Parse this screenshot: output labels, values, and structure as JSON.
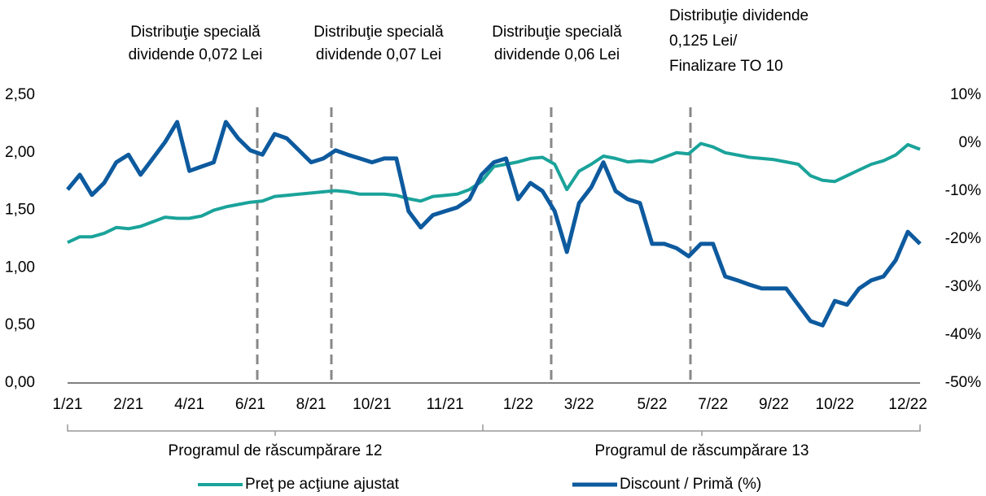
{
  "chart_data": {
    "type": "line",
    "annotations": [
      [
        "Distribuţie specială",
        "dividende 0,072 Lei"
      ],
      [
        "Distribuţie specială",
        "dividende 0,07 Lei"
      ],
      [
        "Distribuţie specială",
        "dividende 0,06 Lei"
      ],
      [
        "Distribuţie dividende",
        "0,125 Lei/",
        "Finalizare TO 10"
      ]
    ],
    "periods": [
      "Programul de răscumpărare 12",
      "Programul de răscumpărare 13"
    ],
    "categories": [
      "1/21",
      null,
      null,
      null,
      null,
      "2/21",
      null,
      null,
      null,
      null,
      "4/21",
      null,
      null,
      null,
      null,
      "6/21",
      null,
      null,
      null,
      null,
      "8/21",
      null,
      null,
      null,
      null,
      "10/21",
      null,
      null,
      null,
      null,
      null,
      "11/21",
      null,
      null,
      null,
      null,
      null,
      "1/22",
      null,
      null,
      null,
      null,
      "3/22",
      null,
      null,
      null,
      null,
      null,
      "5/22",
      null,
      null,
      null,
      null,
      "7/22",
      null,
      null,
      null,
      null,
      "9/22",
      null,
      null,
      null,
      null,
      "10/22",
      null,
      null,
      null,
      null,
      null,
      "12/22",
      null
    ],
    "series": [
      {
        "name": "Preţ pe acţiune ajustat",
        "color": "#1aa39a",
        "values": [
          1.22,
          1.27,
          1.27,
          1.3,
          1.35,
          1.34,
          1.36,
          1.4,
          1.44,
          1.43,
          1.43,
          1.45,
          1.5,
          1.53,
          1.55,
          1.57,
          1.58,
          1.62,
          1.63,
          1.64,
          1.65,
          1.66,
          1.67,
          1.66,
          1.64,
          1.64,
          1.64,
          1.63,
          1.6,
          1.58,
          1.62,
          1.63,
          1.64,
          1.68,
          1.75,
          1.88,
          1.9,
          1.92,
          1.95,
          1.96,
          1.9,
          1.68,
          1.84,
          1.9,
          1.97,
          1.95,
          1.92,
          1.93,
          1.92,
          1.96,
          2.0,
          1.99,
          2.08,
          2.05,
          2.0,
          1.98,
          1.96,
          1.95,
          1.94,
          1.92,
          1.9,
          1.8,
          1.76,
          1.75,
          1.8,
          1.85,
          1.9,
          1.93,
          1.98,
          2.07,
          2.03
        ]
      },
      {
        "name": "Discount / Primă (%)",
        "color": "#0d5a9e",
        "axis": "y2",
        "values": [
          -9.7,
          -6.6,
          -10.8,
          -8.3,
          -4,
          -2.4,
          -6.6,
          -3.2,
          0.2,
          4.4,
          -5.8,
          -4.9,
          -4,
          4.4,
          1,
          -1.5,
          -2.4,
          1.9,
          1,
          -1.5,
          -4,
          -3.2,
          -1.5,
          -2.4,
          -3.2,
          -4,
          -3.2,
          -3.2,
          -14.2,
          -17.6,
          -15,
          -14.2,
          -13.4,
          -11.7,
          -6.6,
          -4,
          -3.2,
          -11.7,
          -8.3,
          -10,
          -14.2,
          -22.7,
          -12.5,
          -9.2,
          -4,
          -10,
          -11.7,
          -12.5,
          -21,
          -21,
          -21.9,
          -23.6,
          -21,
          -21,
          -27.8,
          -28.6,
          -29.5,
          -30.3,
          -30.3,
          -30.3,
          -33.7,
          -37.1,
          -38,
          -32.9,
          -33.7,
          -30.3,
          -28.6,
          -27.8,
          -24.4,
          -18.5,
          -21
        ]
      }
    ],
    "ylim": [
      0,
      2.5
    ],
    "yticks": [
      {
        "value": 0,
        "label": "0,00"
      },
      {
        "value": 0.5,
        "label": "0,50"
      },
      {
        "value": 1,
        "label": "1,00"
      },
      {
        "value": 1.5,
        "label": "1,50"
      },
      {
        "value": 2,
        "label": "2,00"
      },
      {
        "value": 2.5,
        "label": "2,50"
      }
    ],
    "y2lim": [
      -50,
      10
    ],
    "y2ticks": [
      {
        "value": -50,
        "label": "-50%"
      },
      {
        "value": -40,
        "label": "-40%"
      },
      {
        "value": -30,
        "label": "-30%"
      },
      {
        "value": -20,
        "label": "-20%"
      },
      {
        "value": -10,
        "label": "-10%"
      },
      {
        "value": 0,
        "label": "0%"
      },
      {
        "value": 10,
        "label": "10%"
      }
    ],
    "grid": false,
    "legend": "bottom"
  }
}
